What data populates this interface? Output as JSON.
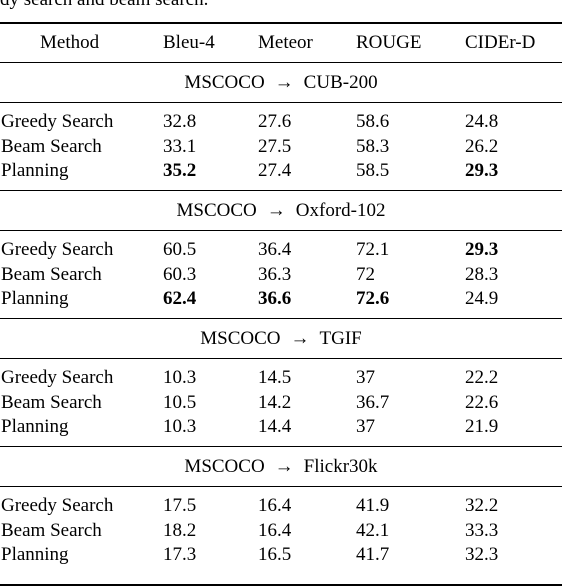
{
  "caption": "dy search and beam search.",
  "columns": [
    "Method",
    "Bleu-4",
    "Meteor",
    "ROUGE",
    "CIDEr-D"
  ],
  "arrow": "→",
  "sections": [
    {
      "source": "MSCOCO",
      "target": "CUB-200",
      "rows": [
        {
          "method": "Greedy Search",
          "values": [
            "32.8",
            "27.6",
            "58.6",
            "24.8"
          ],
          "bold": [
            false,
            false,
            false,
            false
          ]
        },
        {
          "method": "Beam Search",
          "values": [
            "33.1",
            "27.5",
            "58.3",
            "26.2"
          ],
          "bold": [
            false,
            false,
            false,
            false
          ]
        },
        {
          "method": "Planning",
          "values": [
            "35.2",
            "27.4",
            "58.5",
            "29.3"
          ],
          "bold": [
            true,
            false,
            false,
            true
          ]
        }
      ]
    },
    {
      "source": "MSCOCO",
      "target": "Oxford-102",
      "rows": [
        {
          "method": "Greedy Search",
          "values": [
            "60.5",
            "36.4",
            "72.1",
            "29.3"
          ],
          "bold": [
            false,
            false,
            false,
            true
          ]
        },
        {
          "method": "Beam Search",
          "values": [
            "60.3",
            "36.3",
            "72",
            "28.3"
          ],
          "bold": [
            false,
            false,
            false,
            false
          ]
        },
        {
          "method": "Planning",
          "values": [
            "62.4",
            "36.6",
            "72.6",
            "24.9"
          ],
          "bold": [
            true,
            true,
            true,
            false
          ]
        }
      ]
    },
    {
      "source": "MSCOCO",
      "target": "TGIF",
      "rows": [
        {
          "method": "Greedy Search",
          "values": [
            "10.3",
            "14.5",
            "37",
            "22.2"
          ],
          "bold": [
            false,
            false,
            false,
            false
          ]
        },
        {
          "method": "Beam Search",
          "values": [
            "10.5",
            "14.2",
            "36.7",
            "22.6"
          ],
          "bold": [
            false,
            false,
            false,
            false
          ]
        },
        {
          "method": "Planning",
          "values": [
            "10.3",
            "14.4",
            "37",
            "21.9"
          ],
          "bold": [
            false,
            false,
            false,
            false
          ]
        }
      ]
    },
    {
      "source": "MSCOCO",
      "target": "Flickr30k",
      "rows": [
        {
          "method": "Greedy Search",
          "values": [
            "17.5",
            "16.4",
            "41.9",
            "32.2"
          ],
          "bold": [
            false,
            false,
            false,
            false
          ]
        },
        {
          "method": "Beam Search",
          "values": [
            "18.2",
            "16.4",
            "42.1",
            "33.3"
          ],
          "bold": [
            false,
            false,
            false,
            false
          ]
        },
        {
          "method": "Planning",
          "values": [
            "17.3",
            "16.5",
            "41.7",
            "32.3"
          ],
          "bold": [
            false,
            false,
            false,
            false
          ]
        }
      ]
    }
  ]
}
